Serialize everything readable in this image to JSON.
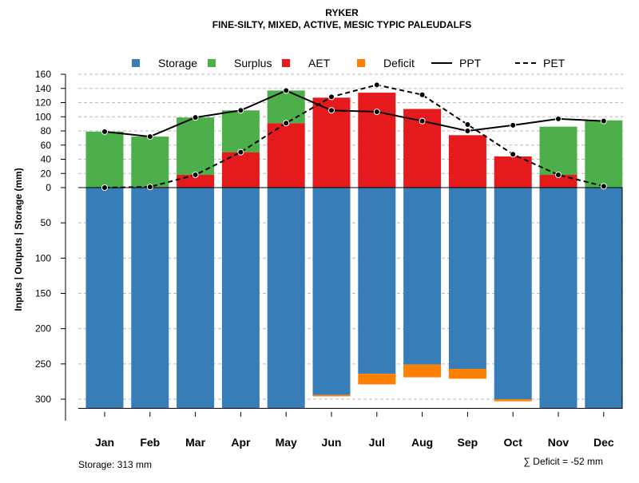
{
  "chart_data": {
    "type": "bar",
    "title": "RYKER",
    "subtitle": "FINE-SILTY, MIXED, ACTIVE, MESIC TYPIC PALEUDALFS",
    "ylabel": "Inputs | Outputs | Storage     (mm)",
    "categories": [
      "Jan",
      "Feb",
      "Mar",
      "Apr",
      "May",
      "Jun",
      "Jul",
      "Aug",
      "Sep",
      "Oct",
      "Nov",
      "Dec"
    ],
    "ylim_upper": [
      0,
      160
    ],
    "yticks_upper": [
      0,
      20,
      40,
      60,
      80,
      100,
      120,
      140,
      160
    ],
    "ylim_lower": [
      0,
      313
    ],
    "yticks_lower": [
      50,
      100,
      150,
      200,
      250,
      300
    ],
    "grid": true,
    "legend_position": "top",
    "legend": [
      "Storage",
      "Surplus",
      "AET",
      "Deficit",
      "PPT",
      "PET"
    ],
    "colors": {
      "Storage": "#377EB8",
      "Surplus": "#4DAF4A",
      "AET": "#E41A1C",
      "Deficit": "#FF7F00",
      "PPT": "#000000",
      "PET": "#000000"
    },
    "series": [
      {
        "name": "PPT",
        "values": [
          79,
          72,
          99,
          109,
          137,
          109,
          107,
          94,
          80,
          88,
          97,
          94
        ]
      },
      {
        "name": "PET",
        "values": [
          0,
          1,
          18,
          50,
          91,
          128,
          145,
          131,
          89,
          47,
          18,
          2
        ]
      },
      {
        "name": "AET",
        "values": [
          0,
          1,
          18,
          50,
          91,
          127,
          134,
          111,
          74,
          44,
          18,
          0
        ]
      },
      {
        "name": "Surplus",
        "values": [
          79,
          71,
          81,
          59,
          46,
          0,
          0,
          0,
          0,
          0,
          68,
          95
        ]
      },
      {
        "name": "Storage",
        "values": [
          313,
          313,
          313,
          313,
          313,
          294,
          264,
          251,
          257,
          300,
          313,
          313
        ]
      },
      {
        "name": "Deficit",
        "values": [
          0,
          0,
          0,
          0,
          0,
          -2,
          -15,
          -18,
          -14,
          -3,
          0,
          0
        ]
      }
    ],
    "annotations": {
      "storage": "Storage: 313 mm",
      "deficit": "∑ Deficit = -52 mm"
    }
  }
}
